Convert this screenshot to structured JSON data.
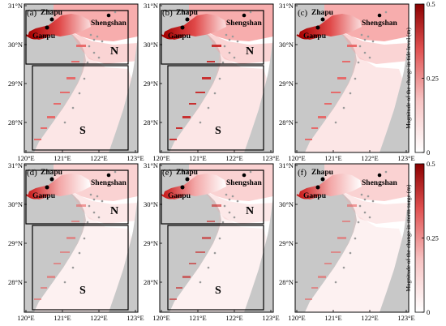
{
  "panels": [
    {
      "label": "(a)",
      "row": "tide",
      "boxes": true
    },
    {
      "label": "(b)",
      "row": "tide",
      "boxes": true
    },
    {
      "label": "(c)",
      "row": "tide",
      "boxes": false
    },
    {
      "label": "(d)",
      "row": "surge",
      "boxes": true
    },
    {
      "label": "(e)",
      "row": "surge",
      "boxes": true
    },
    {
      "label": "(f)",
      "row": "surge",
      "boxes": false
    }
  ],
  "lat_labels": [
    "31°N",
    "30°N",
    "29°N",
    "28°N"
  ],
  "lon_labels": [
    "120°E",
    "121°E",
    "122°E",
    "123°E"
  ],
  "places": {
    "zhapu": "Zhapu",
    "ganpu": "Ganpu",
    "shengshan": "Shengshan"
  },
  "regions": {
    "north": "N",
    "south": "S"
  },
  "colorbars": [
    {
      "title": "Magnitude of the change in tide level (m)",
      "ticks": [
        "0.5",
        "0.25",
        "0"
      ],
      "range": [
        0,
        0.5
      ]
    },
    {
      "title": "Magnitude of the change in storm surge (m)",
      "ticks": [
        "0.5",
        "0.25",
        "0"
      ],
      "range": [
        0,
        0.5
      ]
    }
  ],
  "colors": {
    "land": "#c8c8c8",
    "sea_low": "#ffffff",
    "sea_high": "#8b0000",
    "frame": "#000000"
  }
}
